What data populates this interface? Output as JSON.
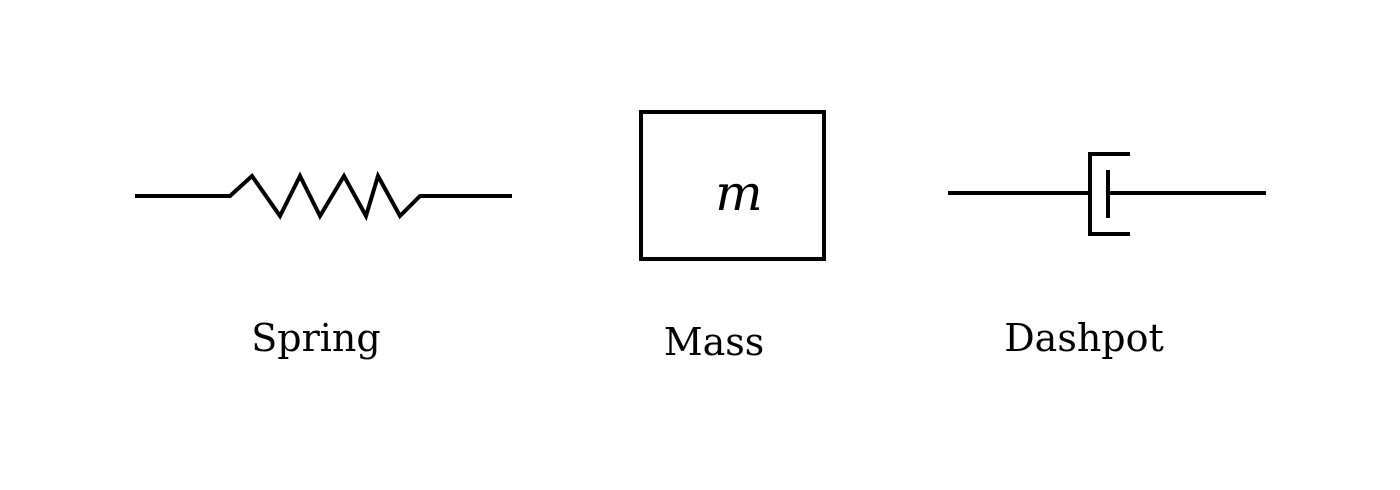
{
  "components": {
    "spring": {
      "label": "Spring"
    },
    "mass": {
      "label": "Mass",
      "symbol": "m"
    },
    "dashpot": {
      "label": "Dashpot"
    }
  },
  "colors": {
    "stroke": "#000000",
    "background": "#ffffff"
  }
}
